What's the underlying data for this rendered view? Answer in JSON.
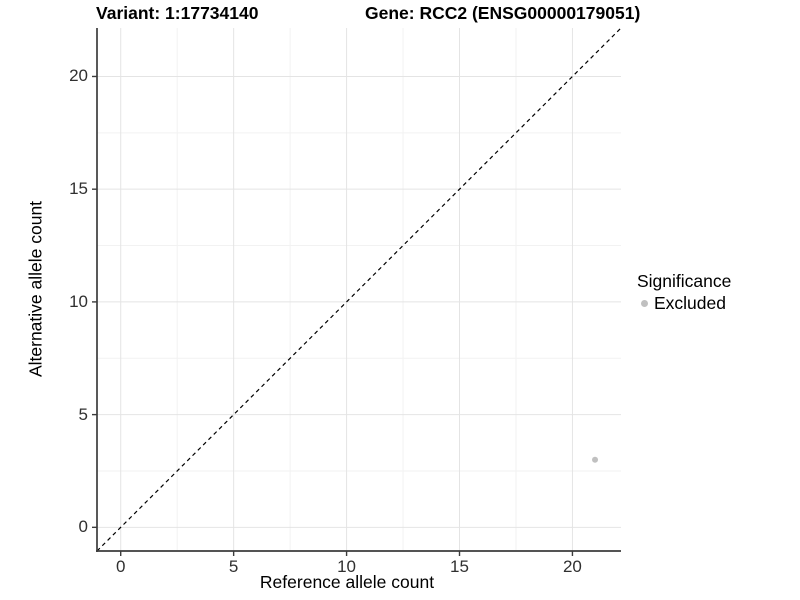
{
  "chart_data": {
    "type": "scatter",
    "titles": [
      "Variant: 1:17734140",
      "Gene: RCC2 (ENSG00000179051)"
    ],
    "xlabel": "Reference allele count",
    "ylabel": "Alternative allele count",
    "xlim": [
      -1.05,
      22.15
    ],
    "ylim": [
      -1.05,
      22.15
    ],
    "x_ticks": [
      "0",
      "5",
      "10",
      "15",
      "20"
    ],
    "y_ticks": [
      "0",
      "5",
      "10",
      "15",
      "20"
    ],
    "x_tick_values": [
      0,
      5,
      10,
      15,
      20
    ],
    "y_tick_values": [
      0,
      5,
      10,
      15,
      20
    ],
    "x_minor_tick_values": [
      2.5,
      7.5,
      12.5,
      17.5
    ],
    "y_minor_tick_values": [
      2.5,
      7.5,
      12.5,
      17.5
    ],
    "grid": "major+minor",
    "reference_line": {
      "kind": "identity y=x",
      "style": "dashed",
      "color": "#000000"
    },
    "series": [
      {
        "name": "Excluded",
        "marker": "circle",
        "color": "#c0c0c0",
        "points": [
          [
            21,
            3
          ]
        ]
      }
    ],
    "legend": {
      "title": "Significance",
      "position": "right",
      "items": [
        {
          "label": "Excluded",
          "marker": "circle",
          "color": "#c0c0c0"
        }
      ]
    }
  },
  "colors": {
    "background": "#ffffff",
    "axis_line": "#3c3c3c",
    "tick_mark": "#3c3c3c",
    "tick_label": "#303030",
    "grid_major": "#e4e4e4",
    "grid_minor": "#f2f2f2",
    "title_text": "#000000",
    "point": "#c0c0c0",
    "identity_line": "#000000"
  }
}
